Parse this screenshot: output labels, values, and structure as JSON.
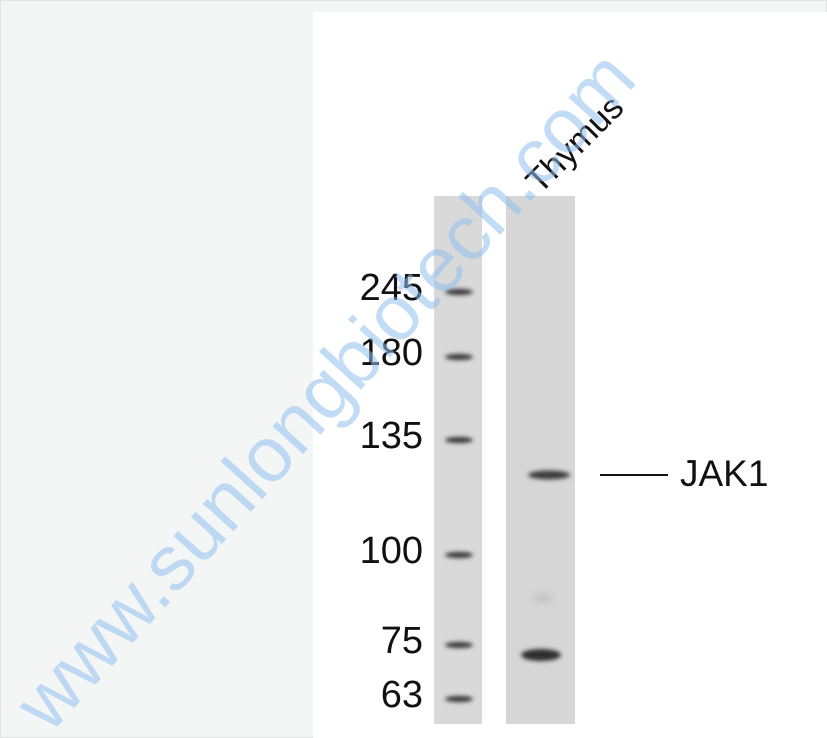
{
  "blot": {
    "lane_label": "Thymus",
    "markers": [
      245,
      180,
      135,
      100,
      75,
      63
    ],
    "band_label": "JAK1",
    "watermark": "www.sunlongbiotech.com"
  }
}
